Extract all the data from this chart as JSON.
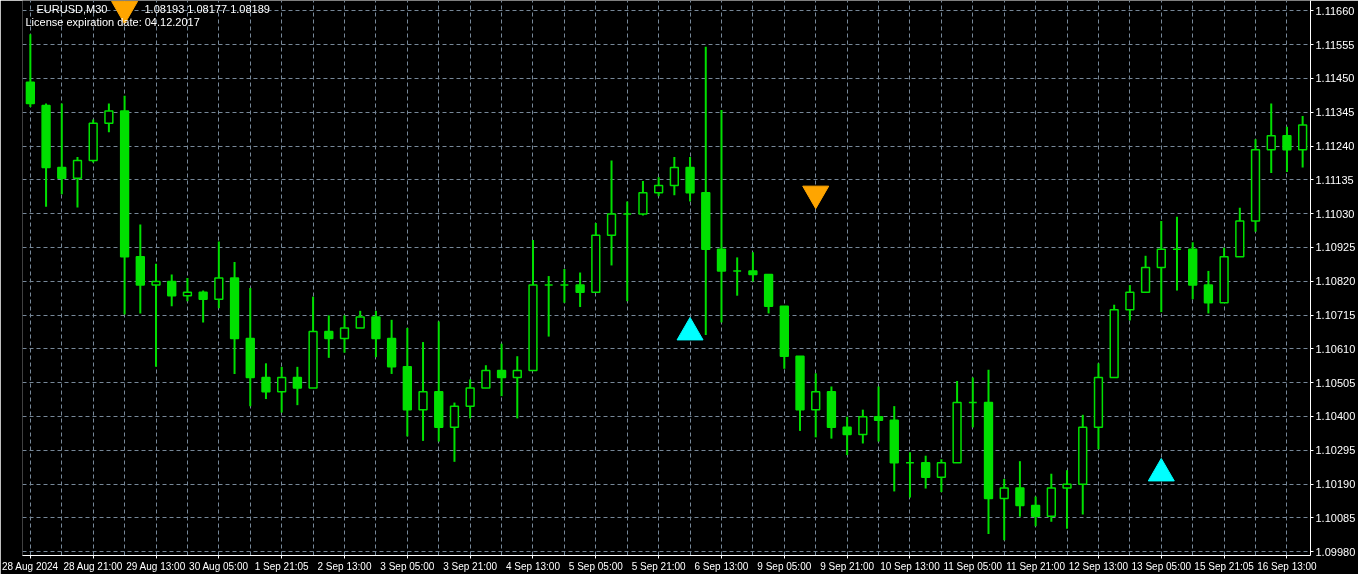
{
  "chart_data": {
    "type": "candlestick",
    "title": "EURUSD,M30",
    "annotations": [
      "1.08193 1.08177 1.08189",
      "License expiration date: 04.12.2017"
    ],
    "color": "#00e000",
    "categories": [
      "28 Aug 2024",
      null,
      null,
      null,
      "28 Aug 21:00",
      null,
      null,
      null,
      "29 Aug 13:00",
      null,
      null,
      null,
      "30 Aug 05:00",
      null,
      null,
      null,
      "1 Sep 21:05",
      null,
      null,
      null,
      "2 Sep 13:00",
      null,
      null,
      null,
      "3 Sep 05:00",
      null,
      null,
      null,
      "3 Sep 21:00",
      null,
      null,
      null,
      "4 Sep 13:00",
      null,
      null,
      null,
      "5 Sep 05:00",
      null,
      null,
      null,
      "5 Sep 21:00",
      null,
      null,
      null,
      "6 Sep 13:00",
      null,
      null,
      null,
      "9 Sep 05:00",
      null,
      null,
      null,
      "9 Sep 21:00",
      null,
      null,
      null,
      "10 Sep 13:00",
      null,
      null,
      null,
      "11 Sep 05:00",
      null,
      null,
      null,
      "11 Sep 21:00",
      null,
      null,
      null,
      "12 Sep 13:00",
      null,
      null,
      null,
      "13 Sep 05:00",
      null,
      null,
      null,
      "15 Sep 21:05",
      null,
      null,
      null,
      "16 Sep 13:00",
      null
    ],
    "ohlc": [
      [
        1.11438,
        1.11587,
        1.11361,
        1.11372
      ],
      [
        1.11366,
        1.11372,
        1.11051,
        1.11173
      ],
      [
        1.11173,
        1.11372,
        1.1109,
        1.1114
      ],
      [
        1.1114,
        1.11206,
        1.11049,
        1.11195
      ],
      [
        1.11195,
        1.11322,
        1.11189,
        1.11311
      ],
      [
        1.11311,
        1.11372,
        1.11283,
        1.11349
      ],
      [
        1.11349,
        1.11396,
        1.10717,
        1.10896
      ],
      [
        1.10896,
        1.10996,
        1.1072,
        1.10808
      ],
      [
        1.10808,
        1.10874,
        1.10554,
        1.10819
      ],
      [
        1.10819,
        1.10841,
        1.10742,
        1.10775
      ],
      [
        1.10775,
        1.1083,
        1.10758,
        1.10786
      ],
      [
        1.10786,
        1.10791,
        1.10692,
        1.10764
      ],
      [
        1.10764,
        1.10943,
        1.10736,
        1.1083
      ],
      [
        1.1083,
        1.1088,
        1.10532,
        1.10642
      ],
      [
        1.10642,
        1.10799,
        1.10432,
        1.10521
      ],
      [
        1.10521,
        1.10565,
        1.10454,
        1.10477
      ],
      [
        1.10477,
        1.10554,
        1.10412,
        1.10521
      ],
      [
        1.10521,
        1.10554,
        1.10435,
        1.10488
      ],
      [
        1.10488,
        1.10772,
        1.10488,
        1.10664
      ],
      [
        1.10664,
        1.10714,
        1.10582,
        1.10642
      ],
      [
        1.10642,
        1.10714,
        1.10598,
        1.10675
      ],
      [
        1.10675,
        1.10728,
        1.10675,
        1.10709
      ],
      [
        1.10709,
        1.10728,
        1.10584,
        1.10642
      ],
      [
        1.10642,
        1.107,
        1.10532,
        1.10554
      ],
      [
        1.10554,
        1.10675,
        1.10338,
        1.10421
      ],
      [
        1.10421,
        1.10631,
        1.10324,
        1.10477
      ],
      [
        1.10477,
        1.10695,
        1.10322,
        1.10366
      ],
      [
        1.10366,
        1.10443,
        1.10259,
        1.10432
      ],
      [
        1.10432,
        1.10515,
        1.10394,
        1.10488
      ],
      [
        1.10488,
        1.10559,
        1.10488,
        1.10543
      ],
      [
        1.10543,
        1.10626,
        1.10463,
        1.10521
      ],
      [
        1.10521,
        1.10587,
        1.10394,
        1.10543
      ],
      [
        1.10543,
        1.10948,
        1.10543,
        1.10808
      ],
      [
        1.10808,
        1.10836,
        1.10648,
        1.10808
      ],
      [
        1.10808,
        1.10858,
        1.10753,
        1.10808
      ],
      [
        1.10808,
        1.10847,
        1.1074,
        1.10786
      ],
      [
        1.10786,
        1.11001,
        1.10786,
        1.10963
      ],
      [
        1.10963,
        1.11195,
        1.10869,
        1.11029
      ],
      [
        1.11029,
        1.11068,
        1.10758,
        1.11029
      ],
      [
        1.11029,
        1.11131,
        1.11024,
        1.11095
      ],
      [
        1.11095,
        1.11143,
        1.11084,
        1.11117
      ],
      [
        1.11117,
        1.11206,
        1.11087,
        1.11173
      ],
      [
        1.11173,
        1.11206,
        1.11068,
        1.11095
      ],
      [
        1.11095,
        1.11548,
        1.10653,
        1.10919
      ],
      [
        1.10919,
        1.11352,
        1.10692,
        1.10852
      ],
      [
        1.10852,
        1.10894,
        1.10775,
        1.10852
      ],
      [
        1.10852,
        1.1091,
        1.10819,
        1.10841
      ],
      [
        1.10841,
        1.10841,
        1.1072,
        1.10742
      ],
      [
        1.10742,
        1.10742,
        1.10548,
        1.10587
      ],
      [
        1.10587,
        1.10587,
        1.10355,
        1.10421
      ],
      [
        1.10421,
        1.10534,
        1.10335,
        1.10477
      ],
      [
        1.10477,
        1.10493,
        1.10331,
        1.10366
      ],
      [
        1.10366,
        1.10399,
        1.1028,
        1.10344
      ],
      [
        1.10344,
        1.10421,
        1.10316,
        1.10399
      ],
      [
        1.10399,
        1.10493,
        1.10322,
        1.10388
      ],
      [
        1.10388,
        1.10432,
        1.10167,
        1.10256
      ],
      [
        1.10256,
        1.10289,
        1.10148,
        1.10256
      ],
      [
        1.10256,
        1.10278,
        1.10176,
        1.10211
      ],
      [
        1.10211,
        1.10267,
        1.10165,
        1.10256
      ],
      [
        1.10256,
        1.1051,
        1.10256,
        1.10443
      ],
      [
        1.10443,
        1.10521,
        1.10366,
        1.10443
      ],
      [
        1.10443,
        1.10545,
        1.10035,
        1.10145
      ],
      [
        1.10145,
        1.10206,
        1.10015,
        1.10178
      ],
      [
        1.10178,
        1.10261,
        1.10088,
        1.10123
      ],
      [
        1.10123,
        1.10151,
        1.10059,
        1.1009
      ],
      [
        1.1009,
        1.10222,
        1.10073,
        1.10178
      ],
      [
        1.10178,
        1.10233,
        1.10051,
        1.10189
      ],
      [
        1.10189,
        1.10405,
        1.10095,
        1.10366
      ],
      [
        1.10366,
        1.10565,
        1.10298,
        1.10521
      ],
      [
        1.10521,
        1.10747,
        1.10521,
        1.10731
      ],
      [
        1.10731,
        1.10808,
        1.10698,
        1.10786
      ],
      [
        1.10786,
        1.10899,
        1.10786,
        1.10863
      ],
      [
        1.10863,
        1.11007,
        1.10724,
        1.10919
      ],
      [
        1.10919,
        1.1102,
        1.10791,
        1.10919
      ],
      [
        1.10919,
        1.10941,
        1.10764,
        1.10808
      ],
      [
        1.10808,
        1.10852,
        1.1072,
        1.10753
      ],
      [
        1.10753,
        1.10924,
        1.10753,
        1.10896
      ],
      [
        1.10896,
        1.11048,
        1.10896,
        1.11007
      ],
      [
        1.11007,
        1.11261,
        1.10974,
        1.11228
      ],
      [
        1.11228,
        1.11372,
        1.11156,
        1.11272
      ],
      [
        1.11272,
        1.113,
        1.11159,
        1.11228
      ],
      [
        1.11228,
        1.11333,
        1.11173,
        1.11305
      ]
    ],
    "series": [
      {
        "type": "scatter",
        "color": "#ffa500",
        "marker": "triangle",
        "values": [
          null,
          null,
          null,
          null,
          null,
          null,
          1.11666,
          null,
          null,
          null,
          null,
          null,
          null,
          null,
          null,
          null,
          null,
          null,
          null,
          null,
          null,
          null,
          null,
          null,
          null,
          null,
          null,
          null,
          null,
          null,
          null,
          null,
          null,
          null,
          null,
          null,
          null,
          null,
          null,
          null,
          null,
          null,
          null,
          null,
          null,
          null,
          null,
          null,
          null,
          null,
          1.11092,
          null,
          null,
          null,
          null,
          null,
          null,
          null,
          null,
          null,
          null,
          null,
          null,
          null,
          null,
          null,
          null,
          null,
          null,
          null,
          null,
          null,
          null,
          null,
          null,
          null,
          null,
          null,
          null,
          null,
          null,
          null
        ]
      },
      {
        "type": "scatter",
        "color": "#00ffff",
        "marker": "triangle",
        "values": [
          null,
          null,
          null,
          null,
          null,
          null,
          null,
          null,
          null,
          null,
          null,
          null,
          null,
          null,
          null,
          null,
          null,
          null,
          null,
          null,
          null,
          null,
          null,
          null,
          null,
          null,
          null,
          null,
          null,
          null,
          null,
          null,
          null,
          null,
          null,
          null,
          null,
          null,
          null,
          null,
          null,
          null,
          1.10661,
          null,
          null,
          null,
          null,
          null,
          null,
          null,
          null,
          null,
          null,
          null,
          null,
          null,
          null,
          null,
          null,
          null,
          null,
          null,
          null,
          null,
          null,
          null,
          null,
          null,
          null,
          null,
          null,
          null,
          1.10223,
          null,
          null,
          null,
          null,
          null,
          null,
          null,
          null,
          null
        ]
      }
    ],
    "ylim": [
      1.09968,
      1.11692
    ],
    "yticks": [
      {
        "value": 1.1166,
        "label": "1.11660"
      },
      {
        "value": 1.11555,
        "label": "1.11555"
      },
      {
        "value": 1.1145,
        "label": "1.11450"
      },
      {
        "value": 1.11345,
        "label": "1.11345"
      },
      {
        "value": 1.1124,
        "label": "1.11240"
      },
      {
        "value": 1.11135,
        "label": "1.11135"
      },
      {
        "value": 1.1103,
        "label": "1.11030"
      },
      {
        "value": 1.10925,
        "label": "1.10925"
      },
      {
        "value": 1.1082,
        "label": "1.10820"
      },
      {
        "value": 1.10715,
        "label": "1.10715"
      },
      {
        "value": 1.1061,
        "label": "1.10610"
      },
      {
        "value": 1.10505,
        "label": "1.10505"
      },
      {
        "value": 1.104,
        "label": "1.10400"
      },
      {
        "value": 1.10295,
        "label": "1.10295"
      },
      {
        "value": 1.1019,
        "label": "1.10190"
      },
      {
        "value": 1.10085,
        "label": "1.10085"
      },
      {
        "value": 1.0998,
        "label": "1.09980"
      }
    ],
    "grid": true
  }
}
